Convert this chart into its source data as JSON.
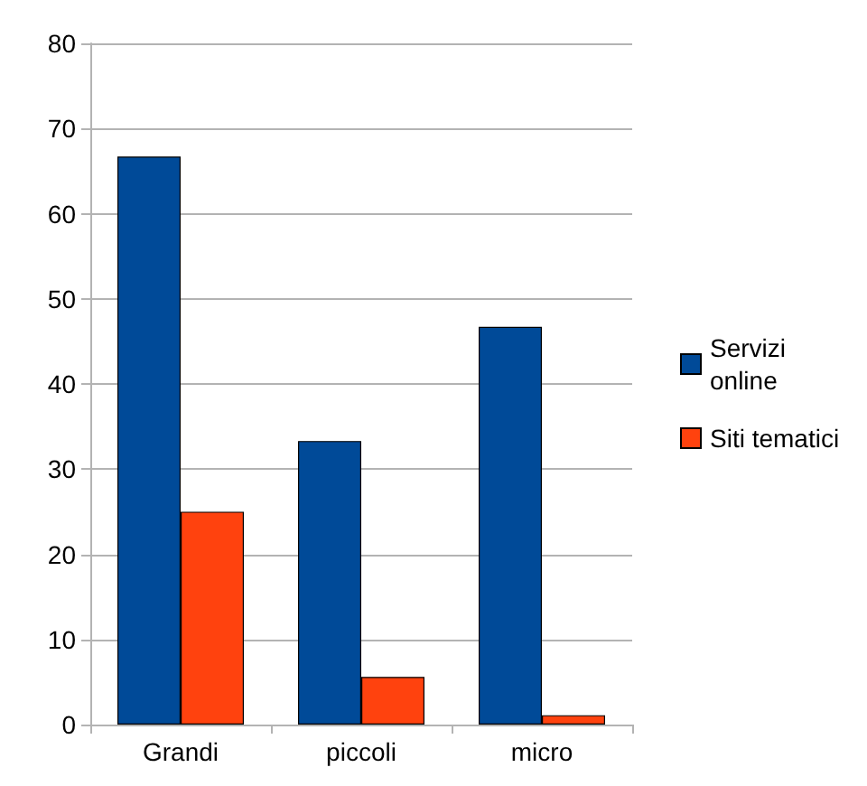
{
  "chart_data": {
    "type": "bar",
    "categories": [
      "Grandi",
      "piccoli",
      "micro"
    ],
    "series": [
      {
        "name": "Servizi online",
        "color": "#004a98",
        "values": [
          66.7,
          33.3,
          46.7
        ]
      },
      {
        "name": "Siti tematici",
        "color": "#ff420e",
        "values": [
          25,
          5.6,
          1.1
        ]
      }
    ],
    "ylim": [
      0,
      80
    ],
    "yticks": [
      0,
      10,
      20,
      30,
      40,
      50,
      60,
      70,
      80
    ],
    "grid": "y",
    "legend": "right"
  }
}
